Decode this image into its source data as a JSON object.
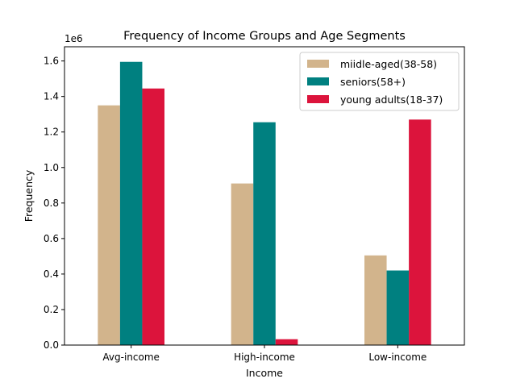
{
  "chart_data": {
    "type": "bar",
    "title": "Frequency of Income Groups and Age Segments",
    "xlabel": "Income",
    "ylabel": "Frequency",
    "y_offset_label": "1e6",
    "categories": [
      "Avg-income",
      "High-income",
      "Low-income"
    ],
    "series": [
      {
        "name": "miidle-aged(38-58)",
        "color": "#d2b48c",
        "values": [
          1350000,
          910000,
          505000
        ]
      },
      {
        "name": "seniors(58+)",
        "color": "#008080",
        "values": [
          1595000,
          1255000,
          420000
        ]
      },
      {
        "name": "young adults(18-37)",
        "color": "#dc143c",
        "values": [
          1445000,
          33000,
          1270000
        ]
      }
    ],
    "ylim": [
      0,
      1680000
    ],
    "yticks": [
      0,
      200000,
      400000,
      600000,
      800000,
      1000000,
      1200000,
      1400000,
      1600000
    ],
    "ytick_labels": [
      "0.0",
      "0.2",
      "0.4",
      "0.6",
      "0.8",
      "1.0",
      "1.2",
      "1.4",
      "1.6"
    ],
    "legend_position": "top-right",
    "grid": false
  }
}
